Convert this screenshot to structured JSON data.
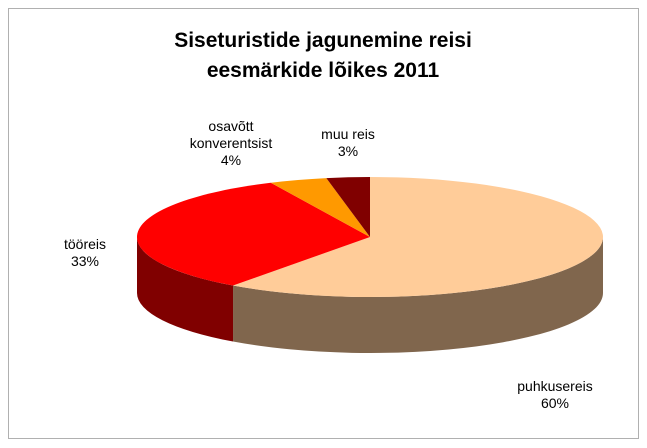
{
  "chart_data": {
    "type": "pie3d",
    "title": "Siseturistide jagunemine reisi eesmärkide lõikes 2011",
    "categories": [
      "puhkusereis",
      "tööreis",
      "osavõtt konverentsist",
      "muu reis"
    ],
    "values": [
      60,
      33,
      4,
      3
    ],
    "value_labels": [
      "60%",
      "33%",
      "4%",
      "3%"
    ],
    "colors": [
      "#ffcc99",
      "#ff0000",
      "#ff9900",
      "#800000"
    ]
  }
}
